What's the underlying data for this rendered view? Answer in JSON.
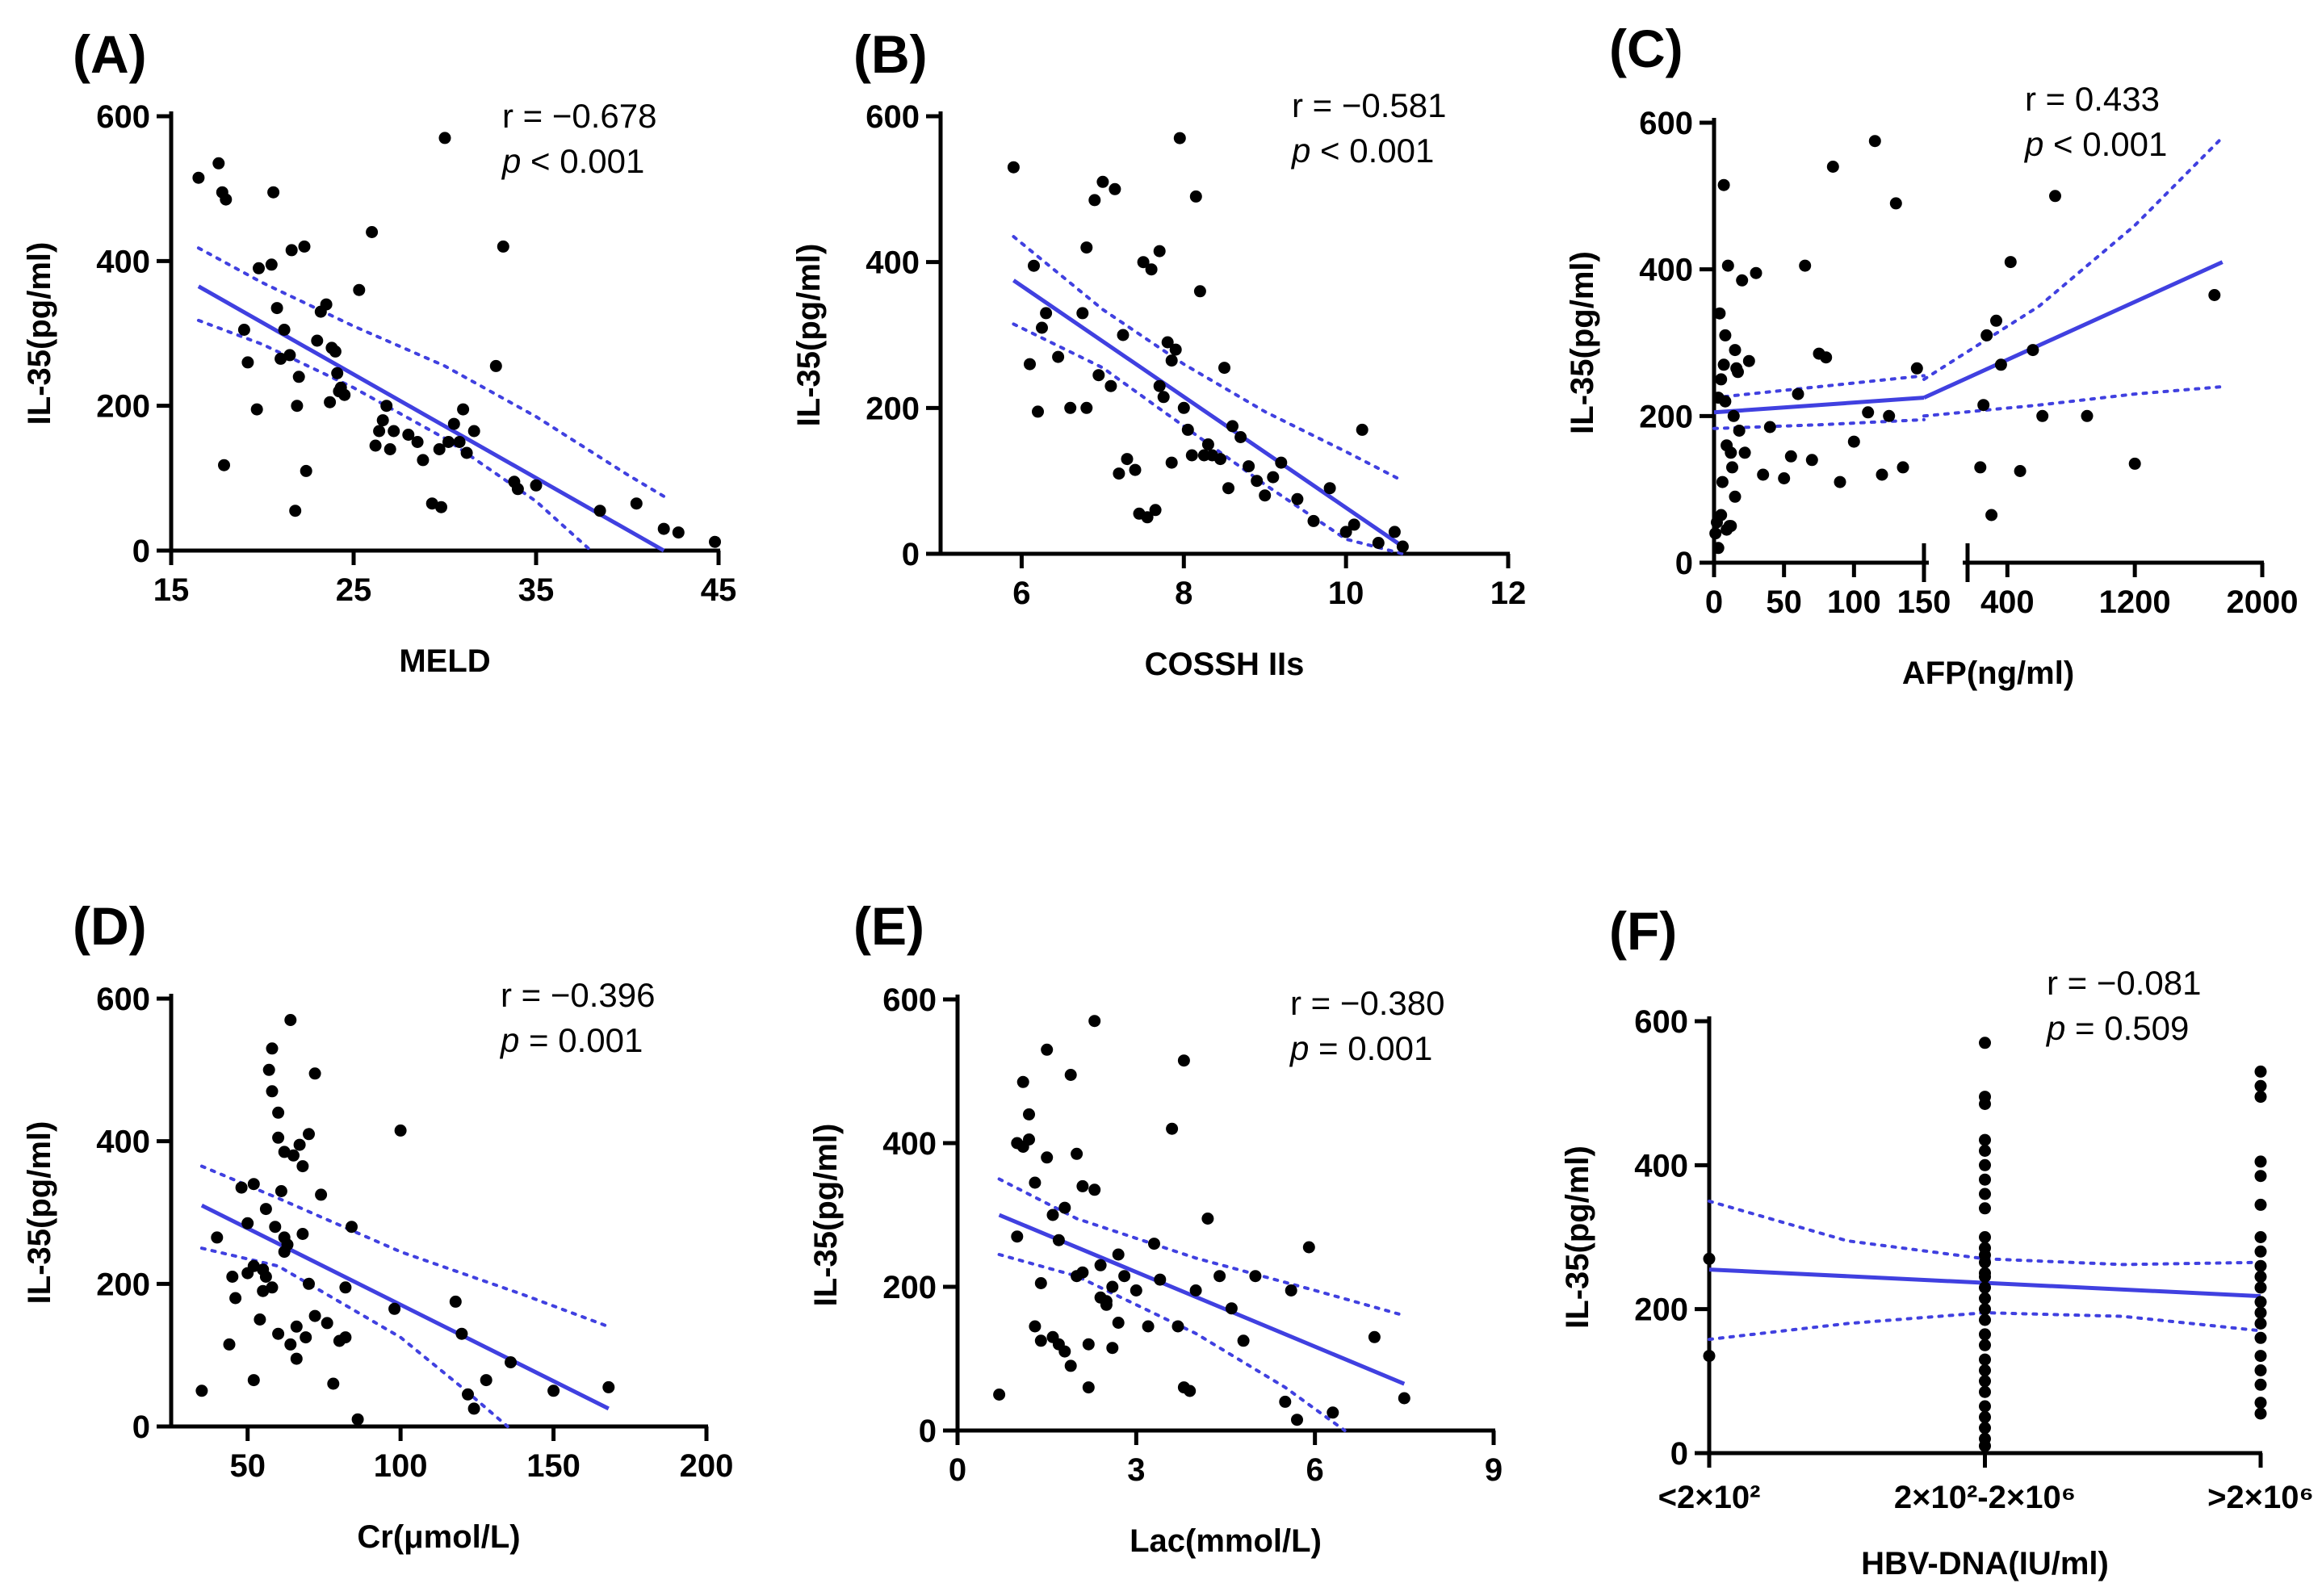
{
  "figure": {
    "fit_color": "#4040e0",
    "point_color": "#000000"
  },
  "chart_data": [
    {
      "id": "A",
      "type": "scatter",
      "title": "(A)",
      "xlabel": "MELD",
      "ylabel": "IL-35(pg/ml)",
      "xlim": [
        15,
        45
      ],
      "ylim": [
        0,
        600
      ],
      "xticks": [
        15,
        25,
        35,
        45
      ],
      "yticks": [
        0,
        200,
        400,
        600
      ],
      "stats": {
        "r": "r = −0.678",
        "p_sym": "p",
        "p": " <  0.001"
      },
      "x": [
        16.5,
        17.6,
        17.8,
        18.0,
        17.9,
        19.0,
        19.2,
        19.7,
        19.8,
        20.5,
        20.8,
        21.2,
        21.5,
        21.6,
        21.0,
        20.6,
        21.9,
        22.0,
        21.8,
        22.3,
        22.4,
        23.0,
        23.2,
        23.5,
        23.8,
        24.0,
        24.3,
        23.7,
        24.1,
        24.5,
        24.2,
        25.3,
        26.0,
        26.2,
        26.4,
        26.8,
        27.2,
        27.0,
        26.6,
        28.0,
        28.5,
        28.8,
        29.3,
        30.0,
        29.8,
        30.2,
        30.5,
        31.0,
        31.2,
        31.6,
        32.8,
        33.2,
        33.8,
        34.0,
        35.0,
        38.5,
        40.5,
        42.0,
        42.8,
        44.8,
        29.7,
        30.8
      ],
      "y": [
        515,
        535,
        495,
        485,
        118,
        305,
        260,
        195,
        390,
        395,
        335,
        305,
        270,
        415,
        265,
        495,
        200,
        240,
        55,
        420,
        110,
        290,
        330,
        340,
        280,
        275,
        225,
        205,
        245,
        215,
        220,
        360,
        440,
        145,
        165,
        200,
        165,
        140,
        180,
        160,
        150,
        125,
        65,
        570,
        60,
        150,
        175,
        195,
        135,
        165,
        255,
        420,
        95,
        85,
        90,
        55,
        65,
        30,
        25,
        12,
        140,
        150
      ],
      "fit": {
        "x": [
          16.5,
          42.0
        ],
        "y": [
          365,
          0
        ]
      },
      "ci_upper": {
        "x": [
          16.5,
          20,
          25,
          30,
          35,
          40,
          42
        ],
        "y": [
          418,
          370,
          310,
          255,
          185,
          105,
          75
        ]
      },
      "ci_lower": {
        "x": [
          16.5,
          20,
          25,
          30,
          35,
          38
        ],
        "y": [
          318,
          285,
          225,
          155,
          68,
          0
        ]
      }
    },
    {
      "id": "B",
      "type": "scatter",
      "title": "(B)",
      "xlabel": "COSSH IIs",
      "ylabel": "IL-35(pg/ml)",
      "xlim": [
        5,
        12
      ],
      "ylim": [
        0,
        600
      ],
      "xticks": [
        6,
        8,
        10,
        12
      ],
      "yticks": [
        0,
        200,
        400,
        600
      ],
      "stats": {
        "r": "r = −0.581",
        "p_sym": "p",
        "p": " <  0.001"
      },
      "x": [
        5.9,
        6.1,
        6.2,
        6.3,
        6.25,
        6.15,
        6.6,
        6.8,
        6.8,
        6.9,
        7.0,
        7.1,
        7.2,
        7.3,
        7.4,
        7.5,
        7.6,
        7.7,
        7.7,
        7.8,
        7.9,
        8.0,
        7.95,
        8.1,
        8.2,
        8.3,
        8.5,
        8.6,
        8.7,
        8.8,
        8.9,
        9.0,
        9.1,
        9.2,
        9.4,
        9.6,
        9.8,
        10.0,
        10.1,
        10.2,
        10.4,
        10.6,
        10.7,
        7.85,
        7.65,
        7.45,
        6.95,
        6.75,
        7.25,
        7.55,
        7.85,
        8.15,
        8.45,
        8.05,
        8.35,
        8.55,
        8.25,
        7.15,
        6.45,
        7.75
      ],
      "y": [
        530,
        260,
        195,
        330,
        310,
        395,
        200,
        200,
        420,
        485,
        510,
        230,
        110,
        130,
        115,
        400,
        390,
        230,
        415,
        290,
        280,
        200,
        570,
        135,
        360,
        150,
        255,
        175,
        160,
        120,
        100,
        80,
        105,
        125,
        75,
        45,
        90,
        30,
        40,
        170,
        15,
        30,
        10,
        265,
        60,
        55,
        245,
        330,
        300,
        50,
        125,
        490,
        130,
        170,
        135,
        90,
        135,
        500,
        270,
        215
      ],
      "fit": {
        "x": [
          5.9,
          10.7
        ],
        "y": [
          375,
          10
        ]
      },
      "ci_upper": {
        "x": [
          5.9,
          7,
          8,
          9,
          10,
          10.7
        ],
        "y": [
          435,
          335,
          260,
          195,
          140,
          100
        ]
      },
      "ci_lower": {
        "x": [
          5.9,
          7,
          8,
          9,
          10,
          10.7
        ],
        "y": [
          315,
          255,
          175,
          95,
          20,
          0
        ]
      }
    },
    {
      "id": "C",
      "type": "scatter",
      "title": "(C)",
      "xlabel": "AFP(ng/ml)",
      "ylabel": "IL-35(pg/ml)",
      "x_segments": [
        {
          "xlim": [
            0,
            150
          ]
        },
        {
          "xlim": [
            150,
            2000
          ]
        }
      ],
      "ylim": [
        0,
        600
      ],
      "xticks_left": [
        0,
        50,
        100,
        150
      ],
      "xticks_right": [
        400,
        1200,
        2000
      ],
      "xtick_labels_left": [
        "0",
        "50",
        "100",
        "150"
      ],
      "xtick_labels_right": [
        "400",
        "1200",
        "2000"
      ],
      "yticks": [
        0,
        200,
        400,
        600
      ],
      "stats": {
        "r": "r = 0.433",
        "p_sym": "p",
        "p": " < 0.001"
      },
      "x": [
        1,
        2,
        3,
        4,
        5,
        6,
        7,
        8,
        9,
        10,
        11,
        12,
        13,
        14,
        15,
        16,
        18,
        20,
        3,
        7,
        9,
        12,
        15,
        22,
        30,
        40,
        50,
        60,
        65,
        70,
        80,
        85,
        90,
        100,
        115,
        120,
        125,
        130,
        5,
        8,
        17,
        25,
        35,
        55,
        75,
        110,
        135,
        145,
        230,
        250,
        300,
        330,
        360,
        420,
        560,
        620,
        700,
        900,
        1200,
        1700,
        270,
        480
      ],
      "y": [
        40,
        55,
        20,
        340,
        65,
        110,
        515,
        220,
        45,
        405,
        50,
        150,
        130,
        200,
        290,
        265,
        180,
        385,
        225,
        270,
        160,
        50,
        90,
        150,
        395,
        185,
        115,
        230,
        405,
        140,
        280,
        540,
        110,
        165,
        575,
        120,
        200,
        490,
        250,
        310,
        260,
        275,
        120,
        145,
        285,
        205,
        130,
        265,
        130,
        215,
        65,
        330,
        270,
        410,
        290,
        200,
        500,
        200,
        135,
        365,
        310,
        125
      ],
      "fit_left": {
        "x": [
          0,
          150
        ],
        "y": [
          205,
          225
        ]
      },
      "ci_upper_left": {
        "x": [
          0,
          75,
          150
        ],
        "y": [
          225,
          240,
          255
        ]
      },
      "ci_lower_left": {
        "x": [
          0,
          75,
          150
        ],
        "y": [
          183,
          188,
          195
        ]
      },
      "fit_right": {
        "x": [
          150,
          1750
        ],
        "y": [
          225,
          410
        ]
      },
      "ci_upper_right": {
        "x": [
          150,
          600,
          1200,
          1750
        ],
        "y": [
          250,
          350,
          460,
          580
        ]
      },
      "ci_lower_right": {
        "x": [
          150,
          600,
          1200,
          1750
        ],
        "y": [
          200,
          215,
          230,
          240
        ]
      }
    },
    {
      "id": "D",
      "type": "scatter",
      "title": "(D)",
      "xlabel": "Cr(μmol/L)",
      "ylabel": "IL-35(pg/ml)",
      "xlim": [
        25,
        200
      ],
      "ylim": [
        0,
        600
      ],
      "xticks": [
        50,
        100,
        150,
        200
      ],
      "yticks": [
        0,
        200,
        400,
        600
      ],
      "stats": {
        "r": "r = −0.396",
        "p_sym": "p",
        "p": " = 0.001"
      },
      "x": [
        35,
        40,
        44,
        46,
        48,
        50,
        52,
        54,
        55,
        56,
        57,
        58,
        59,
        60,
        61,
        62,
        63,
        64,
        65,
        66,
        67,
        68,
        69,
        70,
        72,
        74,
        76,
        78,
        80,
        82,
        84,
        86,
        98,
        100,
        118,
        120,
        122,
        124,
        128,
        136,
        150,
        168,
        50,
        52,
        58,
        62,
        64,
        66,
        68,
        70,
        56,
        58,
        60,
        72,
        82,
        45,
        52,
        60,
        55,
        62
      ],
      "y": [
        50,
        265,
        115,
        180,
        335,
        215,
        65,
        150,
        220,
        305,
        500,
        470,
        280,
        440,
        330,
        265,
        255,
        570,
        380,
        140,
        395,
        365,
        125,
        200,
        495,
        325,
        145,
        60,
        120,
        195,
        280,
        10,
        165,
        415,
        175,
        130,
        45,
        25,
        65,
        90,
        50,
        55,
        285,
        225,
        195,
        385,
        115,
        95,
        270,
        410,
        210,
        530,
        130,
        155,
        125,
        210,
        340,
        405,
        190,
        245
      ],
      "fit": {
        "x": [
          35,
          168
        ],
        "y": [
          310,
          25
        ]
      },
      "ci_upper": {
        "x": [
          35,
          60,
          100,
          140,
          168
        ],
        "y": [
          365,
          320,
          245,
          185,
          140
        ]
      },
      "ci_lower": {
        "x": [
          35,
          60,
          100,
          120,
          135
        ],
        "y": [
          250,
          225,
          125,
          55,
          0
        ]
      }
    },
    {
      "id": "E",
      "type": "scatter",
      "title": "(E)",
      "xlabel": "Lac(mmol/L)",
      "ylabel": "IL-35(pg/ml)",
      "xlim": [
        0,
        9
      ],
      "ylim": [
        0,
        600
      ],
      "xticks": [
        0,
        3,
        6,
        9
      ],
      "yticks": [
        0,
        200,
        400,
        600
      ],
      "stats": {
        "r": "r = −0.380",
        "p_sym": "p",
        "p": " = 0.001"
      },
      "x": [
        0.7,
        1.0,
        1.1,
        1.2,
        1.3,
        1.4,
        1.5,
        1.6,
        1.7,
        1.8,
        1.9,
        2.0,
        2.1,
        2.2,
        2.3,
        2.4,
        2.5,
        2.6,
        2.7,
        2.8,
        3.0,
        3.2,
        3.4,
        3.6,
        3.7,
        3.8,
        3.9,
        4.0,
        4.2,
        4.4,
        4.6,
        4.8,
        5.0,
        5.5,
        5.6,
        5.7,
        5.9,
        6.3,
        7.0,
        7.5,
        1.1,
        1.3,
        1.5,
        1.7,
        1.9,
        2.1,
        2.3,
        2.5,
        1.2,
        1.4,
        1.6,
        2.2,
        2.4,
        2.7,
        3.3,
        3.8,
        1.0,
        1.8,
        2.0,
        2.6
      ],
      "y": [
        50,
        270,
        395,
        440,
        145,
        125,
        530,
        300,
        120,
        110,
        90,
        385,
        220,
        120,
        335,
        230,
        175,
        115,
        150,
        215,
        195,
        145,
        210,
        420,
        145,
        515,
        55,
        195,
        295,
        215,
        170,
        125,
        215,
        40,
        195,
        15,
        255,
        25,
        130,
        45,
        485,
        345,
        380,
        265,
        495,
        340,
        570,
        180,
        405,
        205,
        130,
        60,
        185,
        245,
        260,
        60,
        400,
        310,
        215,
        200
      ],
      "fit": {
        "x": [
          0.7,
          7.5
        ],
        "y": [
          300,
          65
        ]
      },
      "ci_upper": {
        "x": [
          0.7,
          2,
          4,
          6,
          7.5
        ],
        "y": [
          350,
          295,
          240,
          195,
          160
        ]
      },
      "ci_lower": {
        "x": [
          0.7,
          2,
          4,
          5.5,
          6.5
        ],
        "y": [
          245,
          215,
          135,
          60,
          0
        ]
      }
    },
    {
      "id": "F",
      "type": "scatter",
      "title": "(F)",
      "xlabel": "HBV-DNA(IU/ml)",
      "ylabel": "IL-35(pg/ml)",
      "categories": [
        "<2×10²",
        "2×10²-2×10⁶",
        ">2×10⁶"
      ],
      "xlim": [
        0,
        2
      ],
      "ylim": [
        0,
        600
      ],
      "xticks": [
        0,
        1,
        2
      ],
      "yticks": [
        0,
        200,
        400,
        600
      ],
      "stats": {
        "r": "r = −0.081",
        "p_sym": "p",
        "p": " = 0.509"
      },
      "x": [
        0,
        0,
        1,
        1,
        1,
        1,
        1,
        1,
        1,
        1,
        1,
        1,
        1,
        1,
        1,
        1,
        1,
        1,
        1,
        1,
        1,
        1,
        1,
        1,
        1,
        1,
        1,
        1,
        1,
        1,
        1,
        1,
        2,
        2,
        2,
        2,
        2,
        2,
        2,
        2,
        2,
        2,
        2,
        2,
        2,
        2,
        2,
        2,
        2,
        2,
        2,
        2
      ],
      "y": [
        270,
        135,
        570,
        495,
        485,
        435,
        420,
        400,
        380,
        360,
        340,
        300,
        285,
        265,
        250,
        230,
        215,
        200,
        185,
        165,
        150,
        130,
        115,
        100,
        85,
        65,
        50,
        35,
        20,
        10,
        275,
        245,
        530,
        510,
        495,
        405,
        385,
        345,
        300,
        280,
        260,
        245,
        230,
        210,
        195,
        180,
        160,
        135,
        115,
        95,
        70,
        55
      ],
      "fit": {
        "x": [
          0,
          2
        ],
        "y": [
          255,
          218
        ]
      },
      "ci_upper": {
        "x": [
          0,
          0.5,
          1,
          1.5,
          2
        ],
        "y": [
          350,
          295,
          270,
          262,
          265
        ]
      },
      "ci_lower": {
        "x": [
          0,
          0.5,
          1,
          1.5,
          2
        ],
        "y": [
          158,
          180,
          195,
          190,
          170
        ]
      }
    }
  ]
}
